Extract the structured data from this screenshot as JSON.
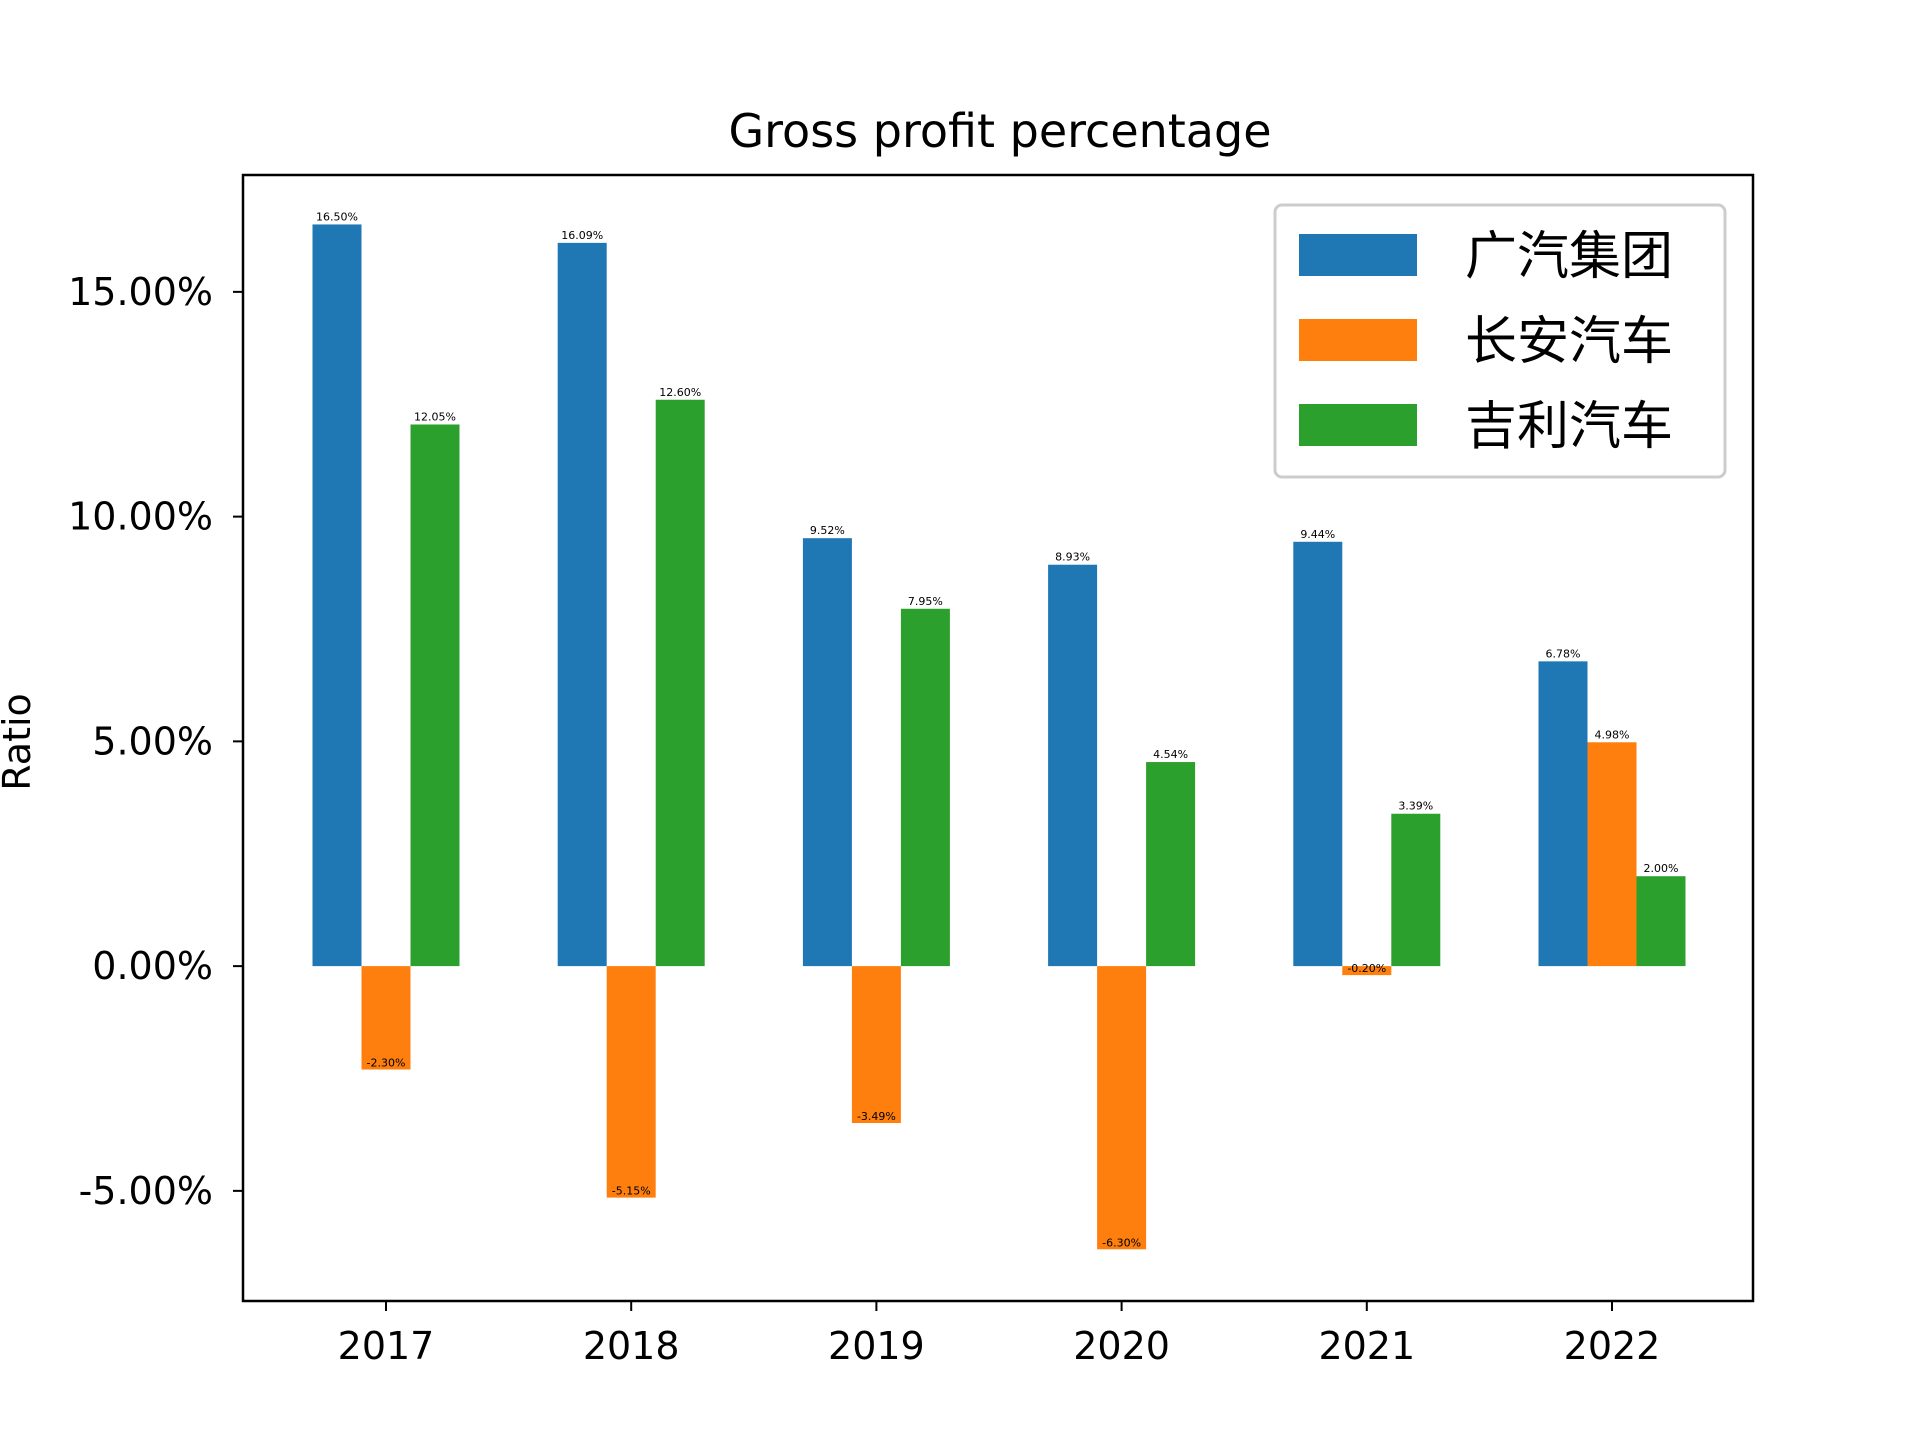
{
  "chart_data": {
    "type": "bar",
    "title": "Gross profit percentage",
    "xlabel": "",
    "ylabel": "Ratio",
    "categories": [
      "2017",
      "2018",
      "2019",
      "2020",
      "2021",
      "2022"
    ],
    "series": [
      {
        "name": "广汽集团",
        "color": "#1f77b4",
        "values": [
          16.5,
          16.09,
          9.52,
          8.93,
          9.44,
          6.78
        ],
        "labels": [
          "16.50%",
          "16.09%",
          "9.52%",
          "8.93%",
          "9.44%",
          "6.78%"
        ]
      },
      {
        "name": "长安汽车",
        "color": "#ff7f0e",
        "values": [
          -2.3,
          -5.15,
          -3.49,
          -6.3,
          -0.2,
          4.98
        ],
        "labels": [
          "-2.30%",
          "-5.15%",
          "-3.49%",
          "-6.30%",
          "-0.20%",
          "4.98%"
        ]
      },
      {
        "name": "吉利汽车",
        "color": "#2ca02c",
        "values": [
          12.05,
          12.6,
          7.95,
          4.54,
          3.39,
          2.0
        ],
        "labels": [
          "12.05%",
          "12.60%",
          "7.95%",
          "4.54%",
          "3.39%",
          "2.00%"
        ]
      }
    ],
    "ylim": [
      -7.45,
      17.6
    ],
    "yticks": [
      -5,
      0,
      5,
      10,
      15
    ],
    "ytick_labels": [
      "-5.00%",
      "0.00%",
      "5.00%",
      "10.00%",
      "15.00%"
    ],
    "legend_position": "top-right",
    "grid": false
  }
}
